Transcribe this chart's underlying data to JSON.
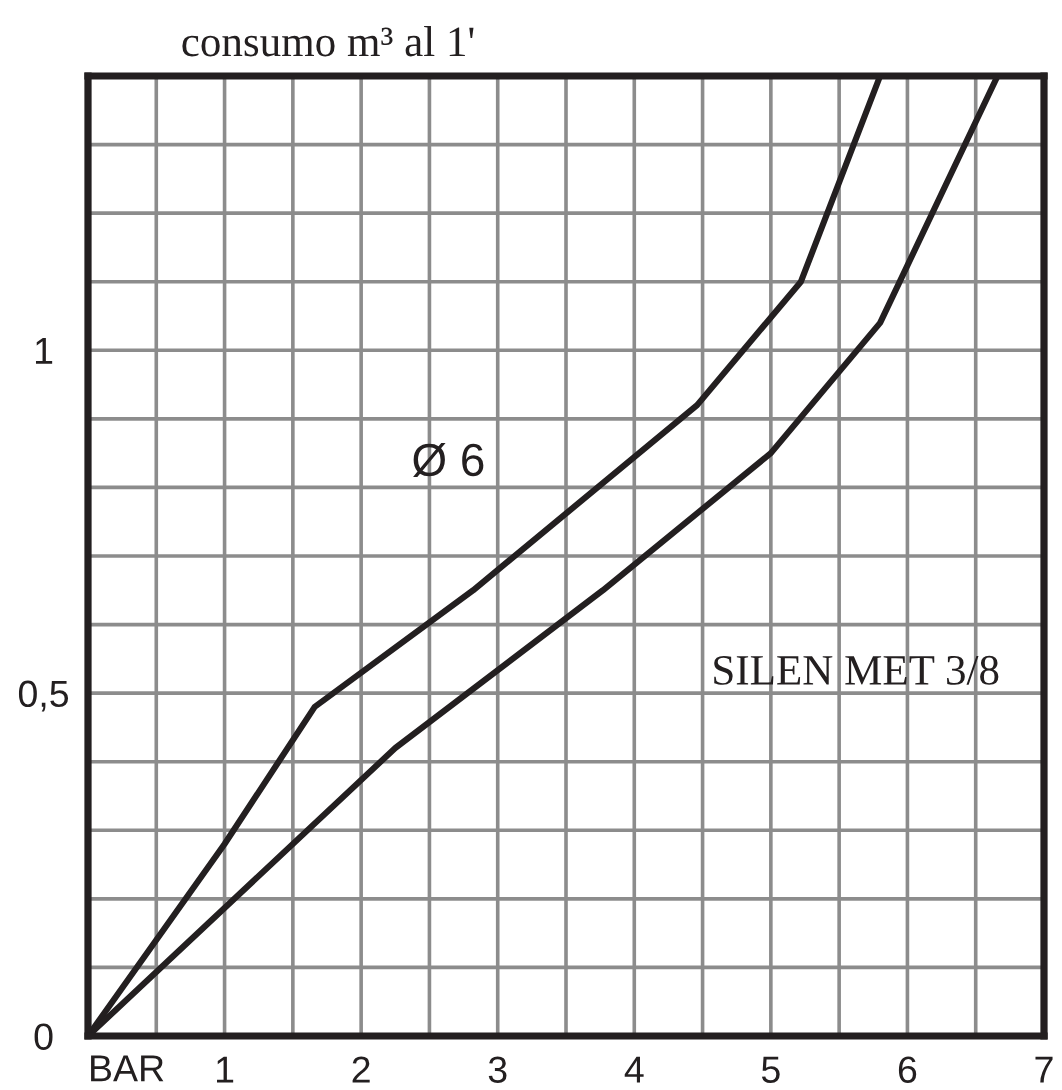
{
  "chart_data": {
    "type": "line",
    "ylabel": "consumo m³ al 1'",
    "xlabel": "BAR",
    "series": [
      {
        "color": "#231f20",
        "x": [
          0,
          1.0,
          1.66,
          2.82,
          4.46,
          5.22,
          5.8
        ],
        "values": [
          0,
          0.28,
          0.48,
          0.65,
          0.92,
          1.1,
          1.4
        ]
      },
      {
        "color": "#231f20",
        "x": [
          0,
          2.25,
          3.77,
          5.0,
          5.8,
          6.66
        ],
        "values": [
          0,
          0.42,
          0.65,
          0.85,
          1.04,
          1.4
        ]
      }
    ],
    "xlim": [
      0,
      7
    ],
    "ylim": [
      0,
      1.4
    ],
    "xticks": [
      {
        "value": 0,
        "label": null
      },
      {
        "value": 0.5,
        "label": null
      },
      1,
      {
        "value": 1.5,
        "label": null
      },
      2,
      {
        "value": 2.5,
        "label": null
      },
      3,
      {
        "value": 3.5,
        "label": null
      },
      4,
      {
        "value": 4.5,
        "label": null
      },
      5,
      {
        "value": 5.5,
        "label": null
      },
      6,
      {
        "value": 6.5,
        "label": null
      },
      7
    ],
    "yticks": [
      0,
      {
        "value": 0.1,
        "label": null
      },
      {
        "value": 0.2,
        "label": null
      },
      {
        "value": 0.3,
        "label": null
      },
      {
        "value": 0.4,
        "label": null
      },
      {
        "value": 0.5,
        "label": "0,5"
      },
      {
        "value": 0.6,
        "label": null
      },
      {
        "value": 0.7,
        "label": null
      },
      {
        "value": 0.8,
        "label": null
      },
      {
        "value": 0.9,
        "label": null
      },
      1,
      {
        "value": 1.1,
        "label": null
      },
      {
        "value": 1.2,
        "label": null
      },
      {
        "value": 1.3,
        "label": null
      },
      {
        "value": 1.4,
        "label": null
      }
    ],
    "grid": true,
    "annotations": [
      "Ø 6",
      "SILEN MET 3/8"
    ]
  }
}
